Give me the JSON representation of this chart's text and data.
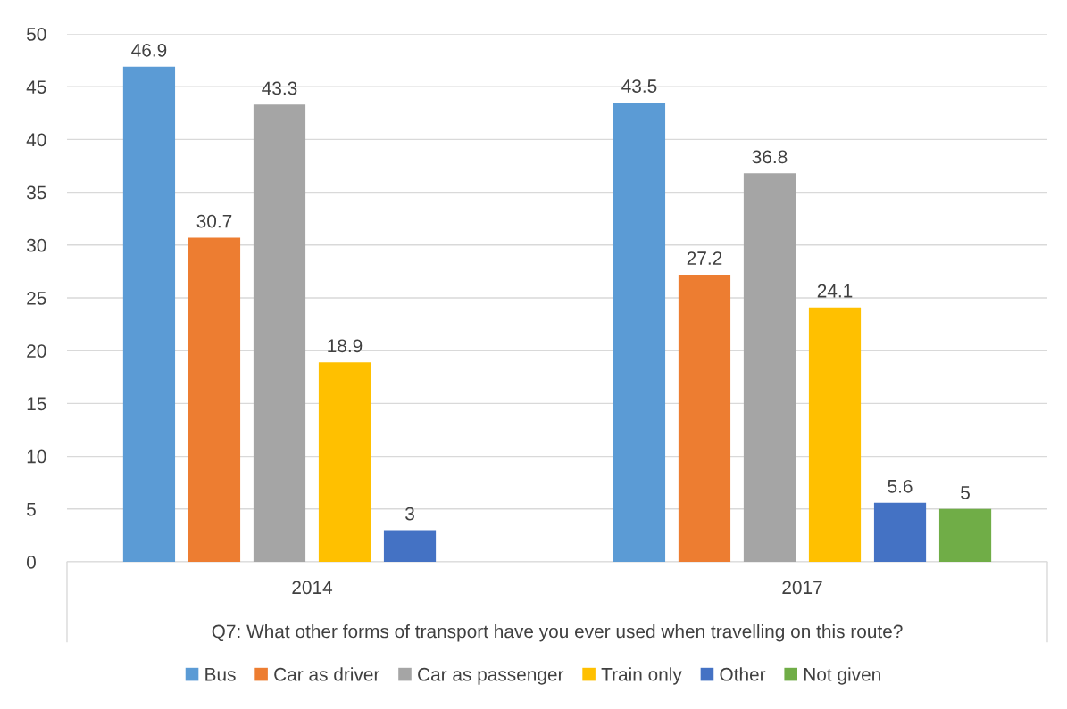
{
  "chart_data": {
    "type": "bar",
    "categories": [
      "2014",
      "2017"
    ],
    "xlabel": "Q7: What other forms of transport have you ever used when travelling on this route?",
    "series": [
      {
        "name": "Bus",
        "color": "#5b9bd5",
        "values": [
          46.9,
          43.5
        ]
      },
      {
        "name": "Car as driver",
        "color": "#ed7d31",
        "values": [
          30.7,
          27.2
        ]
      },
      {
        "name": "Car as passenger",
        "color": "#a5a5a5",
        "values": [
          43.3,
          36.8
        ]
      },
      {
        "name": "Train only",
        "color": "#ffc000",
        "values": [
          18.9,
          24.1
        ]
      },
      {
        "name": "Other",
        "color": "#4472c4",
        "values": [
          3,
          5.6
        ]
      },
      {
        "name": "Not given",
        "color": "#70ad47",
        "values": [
          null,
          5
        ]
      }
    ],
    "ylim": [
      0,
      50
    ],
    "yticks": [
      0,
      5,
      10,
      15,
      20,
      25,
      30,
      35,
      40,
      45,
      50
    ],
    "grid": "y",
    "legend": "bottom",
    "data_labels": true
  }
}
